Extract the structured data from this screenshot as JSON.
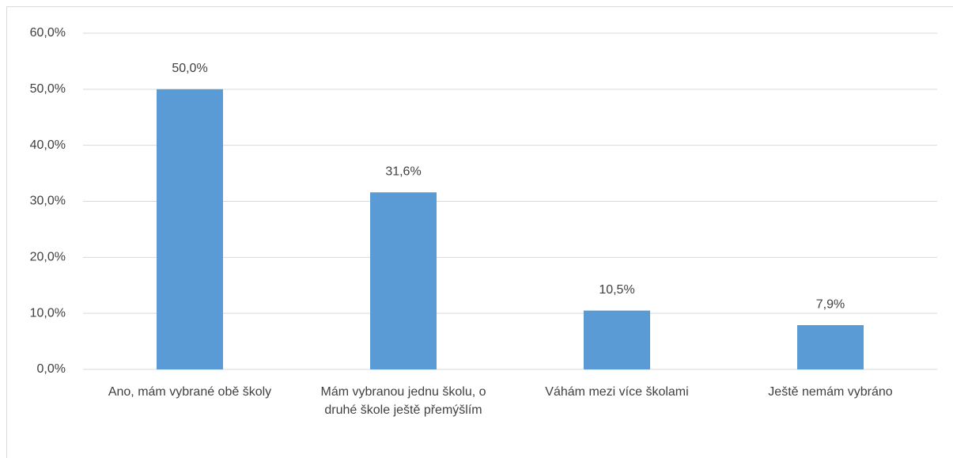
{
  "chart_data": {
    "type": "bar",
    "categories": [
      "Ano, mám vybrané obě školy",
      "Mám vybranou jednu školu, o druhé škole ještě přemýšlím",
      "Váhám mezi více školami",
      "Ještě nemám vybráno"
    ],
    "values": [
      50.0,
      31.6,
      10.5,
      7.9
    ],
    "value_labels": [
      "50,0%",
      "31,6%",
      "10,5%",
      "7,9%"
    ],
    "color": "#5b9bd5",
    "ylim": [
      0,
      60
    ],
    "yticks": [
      {
        "value": 0,
        "label": "0,0%"
      },
      {
        "value": 10,
        "label": "10,0%"
      },
      {
        "value": 20,
        "label": "20,0%"
      },
      {
        "value": 30,
        "label": "30,0%"
      },
      {
        "value": 40,
        "label": "40,0%"
      },
      {
        "value": 50,
        "label": "50,0%"
      },
      {
        "value": 60,
        "label": "60,0%"
      }
    ],
    "grid": true
  }
}
